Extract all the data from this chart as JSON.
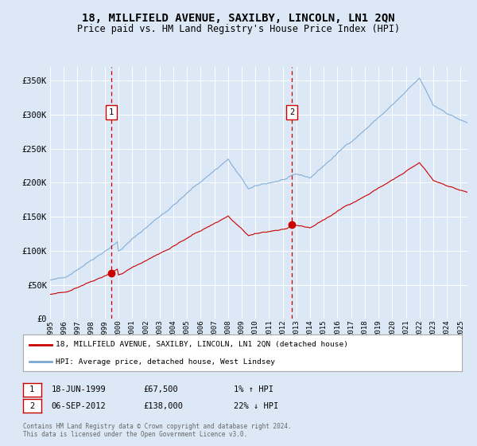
{
  "title": "18, MILLFIELD AVENUE, SAXILBY, LINCOLN, LN1 2QN",
  "subtitle": "Price paid vs. HM Land Registry's House Price Index (HPI)",
  "title_fontsize": 10,
  "subtitle_fontsize": 8.5,
  "bg_color": "#dce8f5",
  "plot_bg_color": "#dce8f5",
  "yticks": [
    0,
    50000,
    100000,
    150000,
    200000,
    250000,
    300000,
    350000
  ],
  "ytick_labels": [
    "£0",
    "£50K",
    "£100K",
    "£150K",
    "£200K",
    "£250K",
    "£300K",
    "£350K"
  ],
  "xmin": 1995.0,
  "xmax": 2025.5,
  "ymin": 0,
  "ymax": 370000,
  "red_line_color": "#cc0000",
  "blue_line_color": "#7aa8d4",
  "sale1_x": 1999.46,
  "sale1_y": 67500,
  "sale2_x": 2012.67,
  "sale2_y": 138000,
  "legend_line1": "18, MILLFIELD AVENUE, SAXILBY, LINCOLN, LN1 2QN (detached house)",
  "legend_line2": "HPI: Average price, detached house, West Lindsey",
  "sale1_date": "18-JUN-1999",
  "sale1_price": "£67,500",
  "sale1_hpi": "1% ↑ HPI",
  "sale2_date": "06-SEP-2012",
  "sale2_price": "£138,000",
  "sale2_hpi": "22% ↓ HPI",
  "footer": "Contains HM Land Registry data © Crown copyright and database right 2024.\nThis data is licensed under the Open Government Licence v3.0."
}
